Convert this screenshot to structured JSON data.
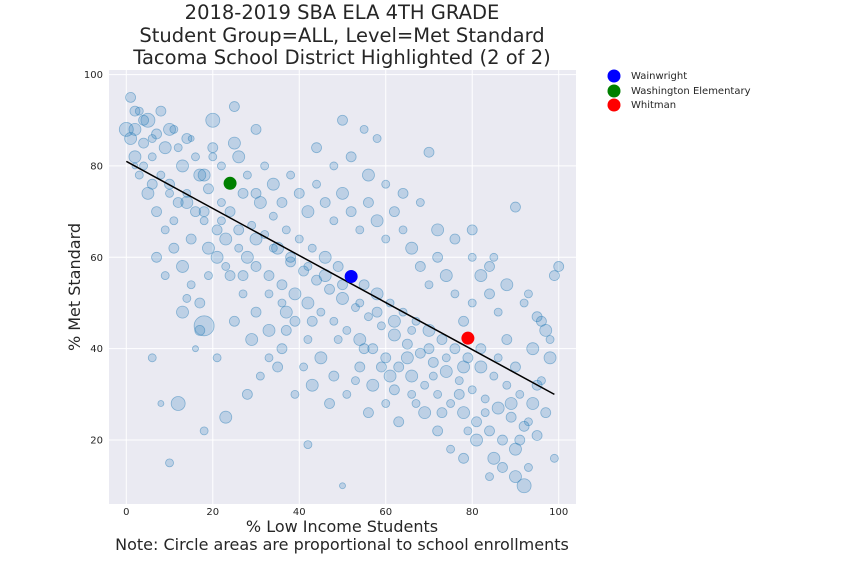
{
  "chart_data": {
    "type": "scatter",
    "title_lines": [
      "2018-2019 SBA ELA 4TH GRADE",
      "Student Group=ALL, Level=Met Standard",
      "Tacoma School District Highlighted (2 of 2)"
    ],
    "xlabel": "% Low Income Students",
    "ylabel": "% Met Standard",
    "note": "Note: Circle areas are proportional to school enrollments",
    "xlim": [
      -4,
      104
    ],
    "ylim": [
      6,
      101
    ],
    "xticks": [
      0,
      20,
      40,
      60,
      80,
      100
    ],
    "yticks": [
      20,
      40,
      60,
      80,
      100
    ],
    "grid": true,
    "background_color": "#eaeaf2",
    "point_color": "#1f77b4",
    "trend_line": {
      "x": [
        0,
        99
      ],
      "y": [
        81,
        30
      ],
      "color": "#000000"
    },
    "background_points": [
      [
        1,
        95,
        5
      ],
      [
        2,
        88,
        6
      ],
      [
        3,
        92,
        4
      ],
      [
        4,
        85,
        5
      ],
      [
        5,
        90,
        7
      ],
      [
        6,
        82,
        4
      ],
      [
        7,
        87,
        5
      ],
      [
        8,
        78,
        4
      ],
      [
        2,
        80,
        3
      ],
      [
        9,
        84,
        6
      ],
      [
        10,
        76,
        5
      ],
      [
        11,
        88,
        4
      ],
      [
        12,
        72,
        5
      ],
      [
        13,
        80,
        6
      ],
      [
        14,
        74,
        4
      ],
      [
        15,
        86,
        3
      ],
      [
        16,
        70,
        5
      ],
      [
        17,
        78,
        6
      ],
      [
        18,
        68,
        4
      ],
      [
        19,
        75,
        5
      ],
      [
        20,
        82,
        4
      ],
      [
        21,
        66,
        5
      ],
      [
        22,
        72,
        4
      ],
      [
        23,
        64,
        6
      ],
      [
        24,
        70,
        5
      ],
      [
        25,
        93,
        5
      ],
      [
        26,
        62,
        4
      ],
      [
        27,
        74,
        5
      ],
      [
        28,
        60,
        6
      ],
      [
        29,
        67,
        4
      ],
      [
        30,
        58,
        5
      ],
      [
        31,
        72,
        6
      ],
      [
        32,
        65,
        4
      ],
      [
        33,
        56,
        5
      ],
      [
        34,
        69,
        4
      ],
      [
        35,
        62,
        6
      ],
      [
        36,
        54,
        5
      ],
      [
        37,
        66,
        4
      ],
      [
        38,
        59,
        5
      ],
      [
        39,
        52,
        6
      ],
      [
        40,
        64,
        4
      ],
      [
        41,
        57,
        5
      ],
      [
        42,
        50,
        6
      ],
      [
        43,
        62,
        4
      ],
      [
        44,
        55,
        5
      ],
      [
        45,
        48,
        4
      ],
      [
        46,
        60,
        6
      ],
      [
        47,
        53,
        5
      ],
      [
        48,
        46,
        4
      ],
      [
        49,
        58,
        5
      ],
      [
        50,
        51,
        6
      ],
      [
        51,
        44,
        4
      ],
      [
        52,
        56,
        5
      ],
      [
        53,
        49,
        4
      ],
      [
        54,
        42,
        6
      ],
      [
        55,
        54,
        5
      ],
      [
        56,
        47,
        4
      ],
      [
        57,
        40,
        5
      ],
      [
        58,
        52,
        6
      ],
      [
        59,
        45,
        4
      ],
      [
        60,
        38,
        5
      ],
      [
        61,
        50,
        4
      ],
      [
        62,
        43,
        6
      ],
      [
        63,
        36,
        5
      ],
      [
        64,
        48,
        4
      ],
      [
        65,
        41,
        5
      ],
      [
        66,
        34,
        6
      ],
      [
        67,
        46,
        4
      ],
      [
        68,
        39,
        5
      ],
      [
        69,
        32,
        4
      ],
      [
        70,
        44,
        6
      ],
      [
        71,
        37,
        5
      ],
      [
        72,
        30,
        4
      ],
      [
        73,
        42,
        5
      ],
      [
        74,
        35,
        6
      ],
      [
        75,
        28,
        4
      ],
      [
        76,
        40,
        5
      ],
      [
        77,
        33,
        4
      ],
      [
        78,
        26,
        6
      ],
      [
        79,
        38,
        5
      ],
      [
        80,
        31,
        4
      ],
      [
        81,
        24,
        5
      ],
      [
        82,
        36,
        6
      ],
      [
        83,
        29,
        4
      ],
      [
        84,
        22,
        5
      ],
      [
        85,
        34,
        4
      ],
      [
        86,
        27,
        6
      ],
      [
        87,
        20,
        5
      ],
      [
        88,
        32,
        4
      ],
      [
        89,
        25,
        5
      ],
      [
        90,
        18,
        6
      ],
      [
        91,
        30,
        4
      ],
      [
        92,
        23,
        5
      ],
      [
        93,
        14,
        4
      ],
      [
        94,
        28,
        6
      ],
      [
        95,
        21,
        5
      ],
      [
        96,
        33,
        4
      ],
      [
        97,
        26,
        5
      ],
      [
        98,
        38,
        6
      ],
      [
        99,
        56,
        5
      ],
      [
        100,
        58,
        5
      ],
      [
        99,
        16,
        4
      ],
      [
        97,
        44,
        6
      ],
      [
        95,
        47,
        5
      ],
      [
        93,
        52,
        4
      ],
      [
        90,
        71,
        5
      ],
      [
        85,
        60,
        4
      ],
      [
        80,
        66,
        5
      ],
      [
        70,
        83,
        5
      ],
      [
        58,
        86,
        4
      ],
      [
        55,
        88,
        4
      ],
      [
        50,
        90,
        5
      ],
      [
        30,
        88,
        5
      ],
      [
        25,
        85,
        6
      ],
      [
        20,
        90,
        7
      ],
      [
        18,
        45,
        10
      ],
      [
        12,
        28,
        7
      ],
      [
        10,
        15,
        4
      ],
      [
        8,
        28,
        3
      ],
      [
        6,
        38,
        4
      ],
      [
        14,
        51,
        4
      ],
      [
        16,
        40,
        3
      ],
      [
        18,
        22,
        4
      ],
      [
        23,
        25,
        6
      ],
      [
        28,
        30,
        5
      ],
      [
        36,
        40,
        5
      ],
      [
        42,
        19,
        4
      ],
      [
        50,
        10,
        3
      ],
      [
        56,
        26,
        5
      ],
      [
        62,
        31,
        5
      ],
      [
        5,
        74,
        6
      ],
      [
        7,
        70,
        5
      ],
      [
        9,
        66,
        4
      ],
      [
        11,
        62,
        5
      ],
      [
        13,
        58,
        6
      ],
      [
        15,
        54,
        4
      ],
      [
        17,
        50,
        5
      ],
      [
        19,
        56,
        4
      ],
      [
        21,
        60,
        6
      ],
      [
        24,
        56,
        5
      ],
      [
        27,
        52,
        4
      ],
      [
        30,
        48,
        5
      ],
      [
        33,
        44,
        6
      ],
      [
        36,
        50,
        4
      ],
      [
        39,
        46,
        5
      ],
      [
        42,
        42,
        4
      ],
      [
        45,
        38,
        6
      ],
      [
        48,
        34,
        5
      ],
      [
        51,
        30,
        4
      ],
      [
        54,
        36,
        5
      ],
      [
        57,
        32,
        6
      ],
      [
        60,
        28,
        4
      ],
      [
        63,
        24,
        5
      ],
      [
        66,
        30,
        4
      ],
      [
        69,
        26,
        6
      ],
      [
        72,
        22,
        5
      ],
      [
        75,
        18,
        4
      ],
      [
        78,
        16,
        5
      ],
      [
        81,
        20,
        6
      ],
      [
        84,
        12,
        4
      ],
      [
        87,
        14,
        5
      ],
      [
        90,
        12,
        6
      ],
      [
        92,
        10,
        7
      ],
      [
        88,
        42,
        5
      ],
      [
        86,
        48,
        4
      ],
      [
        84,
        52,
        5
      ],
      [
        82,
        56,
        6
      ],
      [
        80,
        50,
        4
      ],
      [
        78,
        46,
        5
      ],
      [
        76,
        52,
        4
      ],
      [
        74,
        56,
        6
      ],
      [
        72,
        60,
        5
      ],
      [
        70,
        54,
        4
      ],
      [
        68,
        58,
        5
      ],
      [
        66,
        62,
        6
      ],
      [
        64,
        66,
        4
      ],
      [
        62,
        70,
        5
      ],
      [
        60,
        64,
        4
      ],
      [
        58,
        68,
        6
      ],
      [
        56,
        72,
        5
      ],
      [
        54,
        66,
        4
      ],
      [
        52,
        70,
        5
      ],
      [
        50,
        74,
        6
      ],
      [
        48,
        68,
        4
      ],
      [
        46,
        72,
        5
      ],
      [
        44,
        76,
        4
      ],
      [
        42,
        70,
        6
      ],
      [
        40,
        74,
        5
      ],
      [
        38,
        78,
        4
      ],
      [
        36,
        72,
        5
      ],
      [
        34,
        76,
        6
      ],
      [
        32,
        80,
        4
      ],
      [
        30,
        74,
        5
      ],
      [
        28,
        78,
        4
      ],
      [
        26,
        82,
        6
      ],
      [
        24,
        76,
        5
      ],
      [
        22,
        80,
        4
      ],
      [
        20,
        84,
        5
      ],
      [
        18,
        78,
        6
      ],
      [
        16,
        82,
        4
      ],
      [
        14,
        86,
        5
      ],
      [
        12,
        84,
        4
      ],
      [
        10,
        88,
        6
      ],
      [
        8,
        92,
        5
      ],
      [
        6,
        86,
        4
      ],
      [
        4,
        90,
        5
      ],
      [
        3,
        78,
        4
      ],
      [
        1,
        86,
        6
      ],
      [
        2,
        92,
        5
      ],
      [
        0,
        88,
        7
      ],
      [
        44,
        84,
        5
      ],
      [
        48,
        80,
        4
      ],
      [
        52,
        82,
        5
      ],
      [
        56,
        78,
        6
      ],
      [
        60,
        76,
        4
      ],
      [
        64,
        74,
        5
      ],
      [
        68,
        72,
        4
      ],
      [
        72,
        66,
        6
      ],
      [
        76,
        64,
        5
      ],
      [
        80,
        60,
        4
      ],
      [
        84,
        58,
        5
      ],
      [
        88,
        54,
        6
      ],
      [
        92,
        50,
        4
      ],
      [
        96,
        46,
        5
      ],
      [
        98,
        42,
        4
      ],
      [
        94,
        40,
        6
      ],
      [
        90,
        36,
        5
      ],
      [
        86,
        38,
        4
      ],
      [
        82,
        40,
        5
      ],
      [
        78,
        36,
        6
      ],
      [
        74,
        38,
        4
      ],
      [
        70,
        40,
        5
      ],
      [
        66,
        44,
        4
      ],
      [
        62,
        46,
        6
      ],
      [
        58,
        48,
        5
      ],
      [
        54,
        50,
        4
      ],
      [
        50,
        54,
        5
      ],
      [
        46,
        56,
        6
      ],
      [
        42,
        58,
        4
      ],
      [
        38,
        60,
        5
      ],
      [
        34,
        62,
        4
      ],
      [
        30,
        64,
        6
      ],
      [
        26,
        66,
        5
      ],
      [
        22,
        68,
        4
      ],
      [
        18,
        70,
        5
      ],
      [
        14,
        72,
        6
      ],
      [
        10,
        74,
        4
      ],
      [
        6,
        76,
        5
      ],
      [
        4,
        80,
        4
      ],
      [
        2,
        82,
        6
      ],
      [
        31,
        34,
        4
      ],
      [
        35,
        36,
        5
      ],
      [
        39,
        30,
        4
      ],
      [
        43,
        32,
        6
      ],
      [
        47,
        28,
        5
      ],
      [
        53,
        33,
        4
      ],
      [
        59,
        36,
        5
      ],
      [
        65,
        38,
        6
      ],
      [
        71,
        34,
        4
      ],
      [
        77,
        30,
        5
      ],
      [
        83,
        26,
        4
      ],
      [
        89,
        28,
        6
      ],
      [
        95,
        32,
        5
      ],
      [
        93,
        24,
        4
      ],
      [
        91,
        20,
        5
      ],
      [
        85,
        16,
        6
      ],
      [
        79,
        22,
        4
      ],
      [
        73,
        26,
        5
      ],
      [
        67,
        28,
        4
      ],
      [
        61,
        34,
        6
      ],
      [
        55,
        40,
        5
      ],
      [
        49,
        42,
        4
      ],
      [
        43,
        46,
        5
      ],
      [
        37,
        48,
        6
      ],
      [
        33,
        52,
        4
      ],
      [
        27,
        56,
        5
      ],
      [
        23,
        58,
        4
      ],
      [
        19,
        62,
        6
      ],
      [
        15,
        64,
        5
      ],
      [
        11,
        68,
        4
      ],
      [
        7,
        60,
        5
      ],
      [
        9,
        56,
        4
      ],
      [
        13,
        48,
        6
      ],
      [
        17,
        44,
        5
      ],
      [
        21,
        38,
        4
      ],
      [
        25,
        46,
        5
      ],
      [
        29,
        42,
        6
      ],
      [
        33,
        38,
        4
      ],
      [
        37,
        44,
        5
      ],
      [
        41,
        36,
        4
      ]
    ],
    "highlight_points": [
      {
        "name": "Wainwright",
        "x": 52,
        "y": 55.8,
        "color": "#0000ff"
      },
      {
        "name": "Washington Elementary",
        "x": 24,
        "y": 76.2,
        "color": "#008000"
      },
      {
        "name": "Whitman",
        "x": 79,
        "y": 42.3,
        "color": "#ff0000"
      }
    ]
  },
  "legend": {
    "placement": "outside-right",
    "items": [
      {
        "label": "Wainwright",
        "color": "#0000ff"
      },
      {
        "label": "Washington Elementary",
        "color": "#008000"
      },
      {
        "label": "Whitman",
        "color": "#ff0000"
      }
    ]
  }
}
